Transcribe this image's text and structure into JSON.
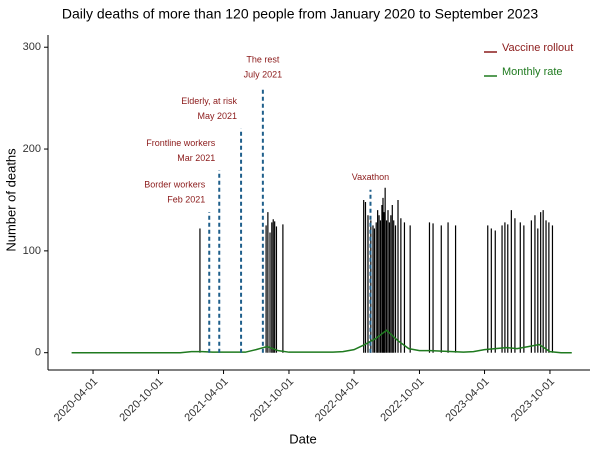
{
  "chart_data": {
    "type": "combo",
    "title": "Daily deaths of more than 120 people from January 2020 to September 2023",
    "x_label": "Date",
    "y_label": "Number of deaths",
    "xlim": [
      "2019-11-27",
      "2024-01-21"
    ],
    "xticks": [
      "2020-04-01",
      "2020-10-01",
      "2021-04-01",
      "2021-10-01",
      "2022-04-01",
      "2022-10-01",
      "2023-04-01",
      "2023-10-01"
    ],
    "ylim": [
      -17,
      312
    ],
    "yticks": [
      0,
      100,
      200,
      300
    ],
    "series": [
      {
        "type": "bar",
        "color": "#000000",
        "x": [
          "2021-01-25",
          "2021-07-29",
          "2021-08-03",
          "2021-08-09",
          "2021-08-14",
          "2021-08-18",
          "2021-08-22",
          "2021-08-27",
          "2021-09-14",
          "2022-04-28",
          "2022-05-03",
          "2022-05-10",
          "2022-05-18",
          "2022-05-24",
          "2022-05-28",
          "2022-06-02",
          "2022-06-06",
          "2022-06-10",
          "2022-06-14",
          "2022-06-18",
          "2022-06-21",
          "2022-06-24",
          "2022-06-27",
          "2022-07-01",
          "2022-07-05",
          "2022-07-09",
          "2022-07-13",
          "2022-07-17",
          "2022-07-21",
          "2022-07-26",
          "2022-08-02",
          "2022-08-10",
          "2022-08-20",
          "2022-09-05",
          "2022-10-29",
          "2022-11-08",
          "2022-12-01",
          "2022-12-20",
          "2023-01-10",
          "2023-04-10",
          "2023-04-20",
          "2023-05-01",
          "2023-05-20",
          "2023-05-28",
          "2023-06-05",
          "2023-06-15",
          "2023-06-25",
          "2023-07-10",
          "2023-07-20",
          "2023-08-10",
          "2023-08-20",
          "2023-08-28",
          "2023-09-05",
          "2023-09-12",
          "2023-09-20",
          "2023-09-28",
          "2023-10-08"
        ],
        "values": [
          122,
          125,
          138,
          118,
          128,
          131,
          129,
          124,
          126,
          150,
          148,
          135,
          130,
          125,
          122,
          128,
          140,
          135,
          130,
          145,
          152,
          138,
          162,
          130,
          140,
          128,
          135,
          145,
          130,
          125,
          150,
          132,
          128,
          125,
          128,
          127,
          125,
          128,
          125,
          125,
          122,
          120,
          125,
          128,
          126,
          140,
          132,
          128,
          125,
          130,
          135,
          122,
          138,
          140,
          130,
          128,
          125
        ]
      },
      {
        "type": "line",
        "name": "Monthly rate",
        "color": "#1f7a1f",
        "x": [
          "2020-02-01",
          "2020-03-01",
          "2020-04-01",
          "2020-05-01",
          "2020-06-01",
          "2020-07-01",
          "2020-08-01",
          "2020-09-01",
          "2020-10-01",
          "2020-11-01",
          "2020-12-01",
          "2021-01-01",
          "2021-02-01",
          "2021-03-01",
          "2021-04-01",
          "2021-05-01",
          "2021-06-01",
          "2021-07-01",
          "2021-08-01",
          "2021-09-01",
          "2021-10-01",
          "2021-11-01",
          "2021-12-01",
          "2022-01-01",
          "2022-02-01",
          "2022-03-01",
          "2022-04-01",
          "2022-05-01",
          "2022-06-01",
          "2022-07-01",
          "2022-08-01",
          "2022-09-01",
          "2022-10-01",
          "2022-11-01",
          "2022-12-01",
          "2023-01-01",
          "2023-02-01",
          "2023-03-01",
          "2023-04-01",
          "2023-05-01",
          "2023-06-01",
          "2023-07-01",
          "2023-08-01",
          "2023-09-01",
          "2023-10-01",
          "2023-11-01",
          "2023-12-01"
        ],
        "values": [
          0,
          0,
          0,
          0,
          0,
          0,
          0,
          0,
          0,
          0,
          0,
          1,
          1,
          0.5,
          0.5,
          0.5,
          0.5,
          3,
          6,
          2,
          0.5,
          0.5,
          0.5,
          0.5,
          0.5,
          1,
          3,
          8,
          14,
          22,
          12,
          4,
          2,
          2,
          1.5,
          1,
          0.5,
          1,
          3,
          4,
          5,
          4,
          6,
          8,
          1,
          0,
          0
        ]
      }
    ],
    "rollout": {
      "name": "Vaccine rollout",
      "color": "#8b1a1a",
      "line_color": "#1f5f8b",
      "items": [
        {
          "label": [
            "Border workers",
            "Feb 2021"
          ],
          "x": "2021-02-20",
          "y": 138
        },
        {
          "label": [
            "Frontline workers",
            "Mar 2021"
          ],
          "x": "2021-03-20",
          "y": 179
        },
        {
          "label": [
            "Elderly, at risk",
            "May 2021"
          ],
          "x": "2021-05-20",
          "y": 220
        },
        {
          "label": [
            "The rest",
            "July 2021"
          ],
          "x": "2021-07-20",
          "y": 261
        },
        {
          "label": [
            "Vaxathon"
          ],
          "x": "2022-05-17",
          "y": 160
        }
      ]
    }
  }
}
